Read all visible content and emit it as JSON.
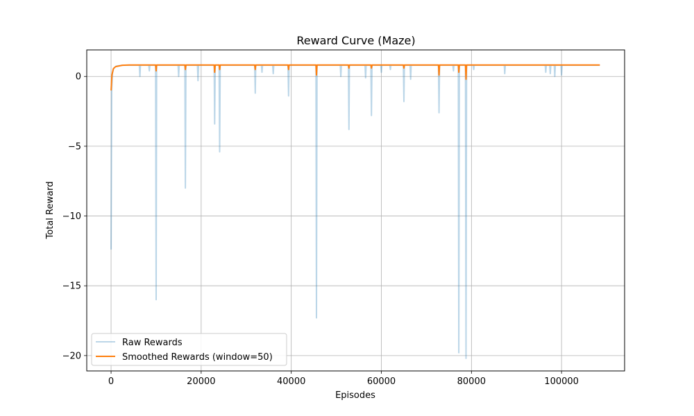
{
  "chart_data": {
    "type": "line",
    "title": "Reward Curve (Maze)",
    "xlabel": "Episodes",
    "ylabel": "Total Reward",
    "xlim": [
      -5400,
      114000
    ],
    "ylim": [
      -21.1,
      1.9
    ],
    "x_ticks": [
      0,
      20000,
      40000,
      60000,
      80000,
      100000
    ],
    "x_tick_labels": [
      "0",
      "20000",
      "40000",
      "60000",
      "80000",
      "100000"
    ],
    "y_ticks": [
      0,
      -5,
      -10,
      -15,
      -20
    ],
    "y_tick_labels": [
      "0",
      "−5",
      "−10",
      "−15",
      "−20"
    ],
    "grid": true,
    "legend_position": "lower-left",
    "series": [
      {
        "name": "Raw Rewards",
        "color": "#1f77b4",
        "opacity": 0.3,
        "baseline": 0.8,
        "x_end": 108500,
        "start": [
          [
            0,
            -12.4
          ],
          [
            150,
            -1.0
          ],
          [
            300,
            0.2
          ],
          [
            600,
            0.6
          ],
          [
            1200,
            0.75
          ],
          [
            2500,
            0.8
          ]
        ],
        "dips": [
          [
            6400,
            0.0
          ],
          [
            8500,
            0.4
          ],
          [
            10000,
            -16.0
          ],
          [
            15000,
            0.0
          ],
          [
            16500,
            -8.0
          ],
          [
            19300,
            -0.3
          ],
          [
            23000,
            -3.4
          ],
          [
            24100,
            -5.4
          ],
          [
            32000,
            -1.2
          ],
          [
            33500,
            0.3
          ],
          [
            36000,
            0.2
          ],
          [
            39400,
            -1.4
          ],
          [
            45600,
            -17.3
          ],
          [
            51000,
            0.0
          ],
          [
            52800,
            -3.8
          ],
          [
            56500,
            -0.1
          ],
          [
            57800,
            -2.8
          ],
          [
            60000,
            0.3
          ],
          [
            62000,
            0.5
          ],
          [
            65000,
            -1.8
          ],
          [
            66500,
            -0.2
          ],
          [
            72800,
            -2.6
          ],
          [
            76000,
            0.4
          ],
          [
            77200,
            -19.8
          ],
          [
            78800,
            -20.2
          ],
          [
            80500,
            0.5
          ],
          [
            87400,
            0.2
          ],
          [
            96500,
            0.3
          ],
          [
            97500,
            0.2
          ],
          [
            98500,
            0.0
          ],
          [
            100000,
            0.1
          ]
        ]
      },
      {
        "name": "Smoothed Rewards (window=50)",
        "color": "#ff7f0e",
        "opacity": 1,
        "baseline": 0.82,
        "x_end": 108500,
        "start": [
          [
            0,
            -1.0
          ],
          [
            200,
            0.1
          ],
          [
            500,
            0.55
          ],
          [
            1000,
            0.7
          ],
          [
            2500,
            0.8
          ],
          [
            4000,
            0.82
          ]
        ],
        "dips": [
          [
            10000,
            0.4
          ],
          [
            16500,
            0.5
          ],
          [
            23000,
            0.3
          ],
          [
            24100,
            0.5
          ],
          [
            32000,
            0.5
          ],
          [
            39400,
            0.5
          ],
          [
            45600,
            0.1
          ],
          [
            52800,
            0.6
          ],
          [
            57800,
            0.6
          ],
          [
            65000,
            0.6
          ],
          [
            72800,
            0.1
          ],
          [
            77200,
            0.3
          ],
          [
            78800,
            -0.2
          ]
        ]
      }
    ]
  }
}
